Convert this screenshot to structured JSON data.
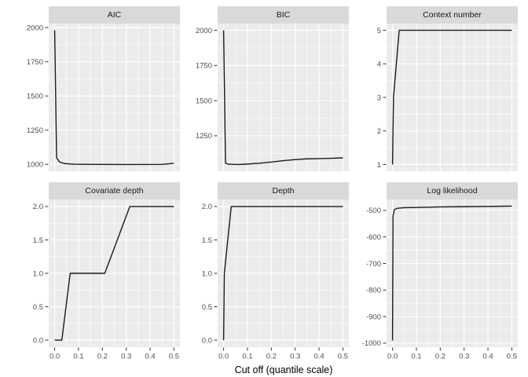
{
  "chart_data": {
    "type": "line",
    "facet_layout": "2x3",
    "xlabel": "Cut off (quantile scale)",
    "xlim": [
      -0.025,
      0.525
    ],
    "xticks": [
      0,
      0.1,
      0.2,
      0.3,
      0.4,
      0.5
    ],
    "xtick_labels": [
      "0.0",
      "0.1",
      "0.2",
      "0.3",
      "0.4",
      "0.5"
    ],
    "x_minor": [
      0.05,
      0.15,
      0.25,
      0.35,
      0.45
    ],
    "grid": "on",
    "legend": "none",
    "colors": {
      "panel_bg": "#EBEBEB",
      "strip_bg": "#D9D9D9",
      "grid_line": "#FFFFFF",
      "data_line": "#1A1A1A",
      "tick_label": "#4D4D4D",
      "tick_mark": "#333333"
    },
    "panels": [
      {
        "title": "AIC",
        "x": [
          0,
          0.008,
          0.02,
          0.04,
          0.08,
          0.15,
          0.3,
          0.45,
          0.5
        ],
        "y": [
          1980,
          1048,
          1018,
          1006,
          1001,
          1000,
          999,
          1000,
          1008
        ],
        "ylim": [
          950,
          2029
        ],
        "yticks": [
          1000,
          1250,
          1500,
          1750,
          2000
        ],
        "ytick_labels": [
          "1000",
          "1250",
          "1500",
          "1750",
          "2000"
        ]
      },
      {
        "title": "BIC",
        "x": [
          0,
          0.008,
          0.02,
          0.06,
          0.1,
          0.15,
          0.2,
          0.25,
          0.3,
          0.35,
          0.4,
          0.45,
          0.5
        ],
        "y": [
          2000,
          1056,
          1048,
          1046,
          1049,
          1055,
          1063,
          1073,
          1081,
          1086,
          1088,
          1090,
          1093
        ],
        "ylim": [
          998,
          2048
        ],
        "yticks": [
          1250,
          1500,
          1750,
          2000
        ],
        "ytick_labels": [
          "1250",
          "1500",
          "1750",
          "2000"
        ]
      },
      {
        "title": "Context number",
        "x": [
          0,
          0.004,
          0.028,
          0.5
        ],
        "y": [
          1,
          3,
          5,
          5
        ],
        "ylim": [
          0.8,
          5.2
        ],
        "yticks": [
          1,
          2,
          3,
          4,
          5
        ],
        "ytick_labels": [
          "1",
          "2",
          "3",
          "4",
          "5"
        ]
      },
      {
        "title": "Covariate depth",
        "x": [
          0,
          0.03,
          0.065,
          0.21,
          0.315,
          0.5
        ],
        "y": [
          0,
          0,
          1,
          1,
          2,
          2
        ],
        "ylim": [
          -0.105,
          2.105
        ],
        "yticks": [
          0,
          0.5,
          1,
          1.5,
          2
        ],
        "ytick_labels": [
          "0.0",
          "0.5",
          "1.0",
          "1.5",
          "2.0"
        ]
      },
      {
        "title": "Depth",
        "x": [
          0,
          0.003,
          0.032,
          0.5
        ],
        "y": [
          0,
          1,
          2,
          2
        ],
        "ylim": [
          -0.105,
          2.105
        ],
        "yticks": [
          0,
          0.5,
          1,
          1.5,
          2
        ],
        "ytick_labels": [
          "0.0",
          "0.5",
          "1.0",
          "1.5",
          "2.0"
        ]
      },
      {
        "title": "Log likelihood",
        "x": [
          0,
          0.002,
          0.008,
          0.02,
          0.05,
          0.1,
          0.2,
          0.3,
          0.4,
          0.5
        ],
        "y": [
          -990,
          -520,
          -497,
          -492,
          -490,
          -489,
          -487,
          -486,
          -485,
          -484
        ],
        "ylim": [
          -1015,
          -459
        ],
        "yticks": [
          -1000,
          -900,
          -800,
          -700,
          -600,
          -500
        ],
        "ytick_labels": [
          "-1000",
          "-900",
          "-800",
          "-700",
          "-600",
          "-500"
        ]
      }
    ]
  }
}
